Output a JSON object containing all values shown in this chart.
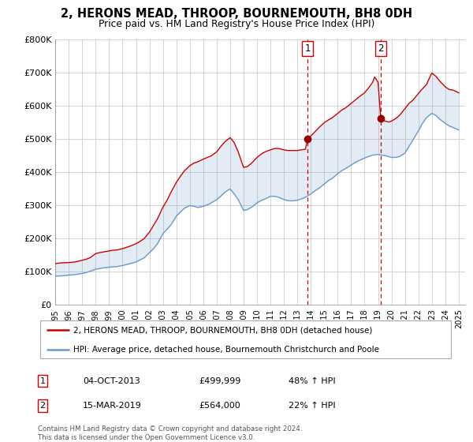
{
  "title": "2, HERONS MEAD, THROOP, BOURNEMOUTH, BH8 0DH",
  "subtitle": "Price paid vs. HM Land Registry's House Price Index (HPI)",
  "ylim": [
    0,
    800000
  ],
  "xlim_start": 1995.0,
  "xlim_end": 2025.5,
  "yticks": [
    0,
    100000,
    200000,
    300000,
    400000,
    500000,
    600000,
    700000,
    800000
  ],
  "ytick_labels": [
    "£0",
    "£100K",
    "£200K",
    "£300K",
    "£400K",
    "£500K",
    "£600K",
    "£700K",
    "£800K"
  ],
  "xticks": [
    1995,
    1996,
    1997,
    1998,
    1999,
    2000,
    2001,
    2002,
    2003,
    2004,
    2005,
    2006,
    2007,
    2008,
    2009,
    2010,
    2011,
    2012,
    2013,
    2014,
    2015,
    2016,
    2017,
    2018,
    2019,
    2020,
    2021,
    2022,
    2023,
    2024,
    2025
  ],
  "red_color": "#cc0000",
  "blue_color": "#6699cc",
  "marker_color": "#990000",
  "vline_color": "#cc0000",
  "grid_color": "#cccccc",
  "sale1_x": 2013.75,
  "sale1_y": 499999,
  "sale1_label": "1",
  "sale1_date": "04-OCT-2013",
  "sale1_price": "£499,999",
  "sale1_hpi": "48% ↑ HPI",
  "sale2_x": 2019.2,
  "sale2_y": 564000,
  "sale2_label": "2",
  "sale2_date": "15-MAR-2019",
  "sale2_price": "£564,000",
  "sale2_hpi": "22% ↑ HPI",
  "legend1_text": "2, HERONS MEAD, THROOP, BOURNEMOUTH, BH8 0DH (detached house)",
  "legend2_text": "HPI: Average price, detached house, Bournemouth Christchurch and Poole",
  "footnote_line1": "Contains HM Land Registry data © Crown copyright and database right 2024.",
  "footnote_line2": "This data is licensed under the Open Government Licence v3.0.",
  "hpi_red": [
    [
      1995.0,
      125000
    ],
    [
      1995.2,
      126000
    ],
    [
      1995.5,
      127000
    ],
    [
      1996.0,
      128000
    ],
    [
      1996.5,
      130000
    ],
    [
      1997.0,
      135000
    ],
    [
      1997.3,
      138000
    ],
    [
      1997.6,
      143000
    ],
    [
      1998.0,
      155000
    ],
    [
      1998.3,
      158000
    ],
    [
      1998.6,
      160000
    ],
    [
      1999.0,
      163000
    ],
    [
      1999.3,
      165000
    ],
    [
      1999.6,
      166000
    ],
    [
      2000.0,
      170000
    ],
    [
      2000.3,
      174000
    ],
    [
      2000.6,
      178000
    ],
    [
      2001.0,
      185000
    ],
    [
      2001.3,
      192000
    ],
    [
      2001.6,
      200000
    ],
    [
      2002.0,
      220000
    ],
    [
      2002.3,
      240000
    ],
    [
      2002.6,
      260000
    ],
    [
      2003.0,
      295000
    ],
    [
      2003.3,
      315000
    ],
    [
      2003.6,
      340000
    ],
    [
      2004.0,
      370000
    ],
    [
      2004.3,
      388000
    ],
    [
      2004.6,
      405000
    ],
    [
      2005.0,
      420000
    ],
    [
      2005.3,
      428000
    ],
    [
      2005.6,
      432000
    ],
    [
      2006.0,
      440000
    ],
    [
      2006.3,
      445000
    ],
    [
      2006.6,
      450000
    ],
    [
      2007.0,
      462000
    ],
    [
      2007.3,
      478000
    ],
    [
      2007.6,
      492000
    ],
    [
      2008.0,
      505000
    ],
    [
      2008.3,
      490000
    ],
    [
      2008.6,
      462000
    ],
    [
      2009.0,
      415000
    ],
    [
      2009.3,
      418000
    ],
    [
      2009.6,
      428000
    ],
    [
      2010.0,
      445000
    ],
    [
      2010.3,
      455000
    ],
    [
      2010.6,
      462000
    ],
    [
      2011.0,
      468000
    ],
    [
      2011.3,
      472000
    ],
    [
      2011.6,
      472000
    ],
    [
      2012.0,
      468000
    ],
    [
      2012.3,
      466000
    ],
    [
      2012.6,
      466000
    ],
    [
      2013.0,
      466000
    ],
    [
      2013.3,
      468000
    ],
    [
      2013.6,
      470000
    ],
    [
      2013.75,
      499999
    ],
    [
      2014.0,
      510000
    ],
    [
      2014.3,
      522000
    ],
    [
      2014.6,
      535000
    ],
    [
      2015.0,
      550000
    ],
    [
      2015.3,
      558000
    ],
    [
      2015.6,
      565000
    ],
    [
      2016.0,
      578000
    ],
    [
      2016.3,
      588000
    ],
    [
      2016.6,
      595000
    ],
    [
      2017.0,
      608000
    ],
    [
      2017.3,
      618000
    ],
    [
      2017.6,
      628000
    ],
    [
      2018.0,
      640000
    ],
    [
      2018.3,
      655000
    ],
    [
      2018.6,
      672000
    ],
    [
      2018.75,
      688000
    ],
    [
      2019.0,
      672000
    ],
    [
      2019.2,
      564000
    ],
    [
      2019.5,
      555000
    ],
    [
      2019.8,
      552000
    ],
    [
      2020.0,
      555000
    ],
    [
      2020.3,
      562000
    ],
    [
      2020.6,
      572000
    ],
    [
      2021.0,
      592000
    ],
    [
      2021.3,
      608000
    ],
    [
      2021.6,
      618000
    ],
    [
      2022.0,
      638000
    ],
    [
      2022.3,
      652000
    ],
    [
      2022.6,
      665000
    ],
    [
      2023.0,
      700000
    ],
    [
      2023.3,
      690000
    ],
    [
      2023.6,
      675000
    ],
    [
      2024.0,
      658000
    ],
    [
      2024.3,
      650000
    ],
    [
      2024.6,
      648000
    ],
    [
      2025.0,
      640000
    ]
  ],
  "hpi_blue": [
    [
      1995.0,
      87000
    ],
    [
      1995.2,
      87500
    ],
    [
      1995.5,
      88000
    ],
    [
      1996.0,
      90000
    ],
    [
      1996.5,
      92000
    ],
    [
      1997.0,
      95000
    ],
    [
      1997.3,
      98000
    ],
    [
      1997.6,
      102000
    ],
    [
      1998.0,
      108000
    ],
    [
      1998.3,
      110000
    ],
    [
      1998.6,
      112000
    ],
    [
      1999.0,
      114000
    ],
    [
      1999.3,
      115000
    ],
    [
      1999.6,
      116000
    ],
    [
      2000.0,
      119000
    ],
    [
      2000.3,
      122000
    ],
    [
      2000.6,
      125000
    ],
    [
      2001.0,
      130000
    ],
    [
      2001.3,
      136000
    ],
    [
      2001.6,
      142000
    ],
    [
      2002.0,
      158000
    ],
    [
      2002.3,
      170000
    ],
    [
      2002.6,
      185000
    ],
    [
      2003.0,
      215000
    ],
    [
      2003.3,
      228000
    ],
    [
      2003.6,
      242000
    ],
    [
      2004.0,
      268000
    ],
    [
      2004.3,
      280000
    ],
    [
      2004.6,
      292000
    ],
    [
      2005.0,
      300000
    ],
    [
      2005.3,
      298000
    ],
    [
      2005.6,
      294000
    ],
    [
      2006.0,
      298000
    ],
    [
      2006.3,
      302000
    ],
    [
      2006.6,
      308000
    ],
    [
      2007.0,
      318000
    ],
    [
      2007.3,
      328000
    ],
    [
      2007.6,
      340000
    ],
    [
      2008.0,
      350000
    ],
    [
      2008.3,
      335000
    ],
    [
      2008.6,
      318000
    ],
    [
      2009.0,
      285000
    ],
    [
      2009.3,
      288000
    ],
    [
      2009.6,
      295000
    ],
    [
      2010.0,
      308000
    ],
    [
      2010.3,
      315000
    ],
    [
      2010.6,
      320000
    ],
    [
      2011.0,
      328000
    ],
    [
      2011.3,
      328000
    ],
    [
      2011.6,
      325000
    ],
    [
      2012.0,
      318000
    ],
    [
      2012.3,
      315000
    ],
    [
      2012.6,
      314000
    ],
    [
      2013.0,
      316000
    ],
    [
      2013.3,
      320000
    ],
    [
      2013.6,
      325000
    ],
    [
      2014.0,
      335000
    ],
    [
      2014.3,
      344000
    ],
    [
      2014.6,
      352000
    ],
    [
      2015.0,
      365000
    ],
    [
      2015.3,
      375000
    ],
    [
      2015.6,
      382000
    ],
    [
      2016.0,
      396000
    ],
    [
      2016.3,
      405000
    ],
    [
      2016.6,
      412000
    ],
    [
      2017.0,
      422000
    ],
    [
      2017.3,
      430000
    ],
    [
      2017.6,
      436000
    ],
    [
      2018.0,
      443000
    ],
    [
      2018.3,
      448000
    ],
    [
      2018.6,
      452000
    ],
    [
      2019.0,
      454000
    ],
    [
      2019.3,
      452000
    ],
    [
      2019.6,
      450000
    ],
    [
      2020.0,
      445000
    ],
    [
      2020.3,
      445000
    ],
    [
      2020.6,
      448000
    ],
    [
      2021.0,
      458000
    ],
    [
      2021.3,
      478000
    ],
    [
      2021.6,
      498000
    ],
    [
      2022.0,
      525000
    ],
    [
      2022.3,
      548000
    ],
    [
      2022.6,
      565000
    ],
    [
      2023.0,
      578000
    ],
    [
      2023.3,
      572000
    ],
    [
      2023.6,
      560000
    ],
    [
      2024.0,
      548000
    ],
    [
      2024.3,
      540000
    ],
    [
      2024.6,
      535000
    ],
    [
      2025.0,
      528000
    ]
  ]
}
